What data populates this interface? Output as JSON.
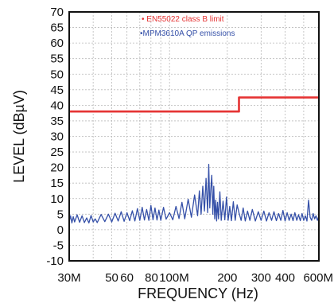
{
  "chart_data": {
    "type": "line",
    "xlabel": "FREQUENCY (Hz)",
    "ylabel": "LEVEL (dBµV)",
    "x_scale": "log",
    "xlim": [
      30,
      600
    ],
    "ylim": [
      -10,
      70
    ],
    "y_ticks": [
      70,
      65,
      60,
      55,
      50,
      45,
      40,
      35,
      30,
      25,
      20,
      15,
      10,
      5,
      0,
      -5,
      -10
    ],
    "x_tick_labels": [
      {
        "value": 30,
        "label": "30M"
      },
      {
        "value": 50,
        "label": "50"
      },
      {
        "value": 60,
        "label": "60"
      },
      {
        "value": 80,
        "label": "80"
      },
      {
        "value": 100,
        "label": "100M"
      },
      {
        "value": 200,
        "label": "200"
      },
      {
        "value": 300,
        "label": "300"
      },
      {
        "value": 400,
        "label": "400"
      },
      {
        "value": 600,
        "label": "600M"
      }
    ],
    "grid": true,
    "legend_position": "top-center",
    "series": [
      {
        "name": "EN55022 class B limit",
        "color": "#e53333",
        "x": [
          30,
          230,
          230,
          600
        ],
        "y": [
          38,
          38,
          42.5,
          42.5
        ]
      },
      {
        "name": "MPM3610A QP emissions",
        "color": "#3550a8",
        "x": [
          30,
          30.5,
          31,
          31.5,
          32,
          33,
          34,
          35,
          36,
          37,
          38,
          39,
          40,
          41,
          42,
          44,
          46,
          48,
          50,
          52,
          54,
          56,
          58,
          60,
          62,
          64,
          66,
          68,
          70,
          72,
          74,
          76,
          78,
          80,
          82,
          84,
          86,
          88,
          90,
          93,
          96,
          100,
          104,
          108,
          112,
          116,
          120,
          125,
          130,
          135,
          140,
          143,
          146,
          149,
          152,
          155,
          158,
          160,
          162,
          164,
          166,
          168,
          170,
          172,
          174,
          176,
          178,
          180,
          183,
          186,
          190,
          194,
          198,
          202,
          206,
          210,
          215,
          220,
          225,
          230,
          236,
          242,
          248,
          255,
          262,
          270,
          280,
          290,
          300,
          310,
          320,
          330,
          340,
          350,
          360,
          370,
          380,
          390,
          400,
          410,
          420,
          430,
          440,
          450,
          460,
          470,
          480,
          490,
          500,
          510,
          520,
          530,
          540,
          550,
          560,
          570,
          580,
          590,
          600
        ],
        "y": [
          2.5,
          4.5,
          2.2,
          4.2,
          2.5,
          4.8,
          2.4,
          4.5,
          2.3,
          3.8,
          2.2,
          4.6,
          2.5,
          3.5,
          2.3,
          4.9,
          2.6,
          5.0,
          2.5,
          5.3,
          2.8,
          5.8,
          2.7,
          5.5,
          2.9,
          6.1,
          2.8,
          6.8,
          3.0,
          7.2,
          3.1,
          6.5,
          3.0,
          7.8,
          3.2,
          7.0,
          3.1,
          6.3,
          3.0,
          7.2,
          3.4,
          5.5,
          3.2,
          7.5,
          3.6,
          8.8,
          3.5,
          9.8,
          4.0,
          11.2,
          4.5,
          12.5,
          5.0,
          14.0,
          6.0,
          16.5,
          5.5,
          21.0,
          7.0,
          13.0,
          17.5,
          5.0,
          14.0,
          3.5,
          9.5,
          2.8,
          8.8,
          3.5,
          12.2,
          3.0,
          9.2,
          3.2,
          10.5,
          3.0,
          7.5,
          2.9,
          9.0,
          3.0,
          8.0,
          5.5,
          3.0,
          7.0,
          2.8,
          6.0,
          3.0,
          6.5,
          2.8,
          5.8,
          3.0,
          6.0,
          2.8,
          5.5,
          3.0,
          5.8,
          2.9,
          5.2,
          3.0,
          6.2,
          2.8,
          5.5,
          3.0,
          5.0,
          2.9,
          5.5,
          3.0,
          4.8,
          2.9,
          5.2,
          3.0,
          4.5,
          2.8,
          9.5,
          4.0,
          3.0,
          5.2,
          3.5,
          4.5,
          3.0,
          4.5
        ]
      }
    ]
  }
}
